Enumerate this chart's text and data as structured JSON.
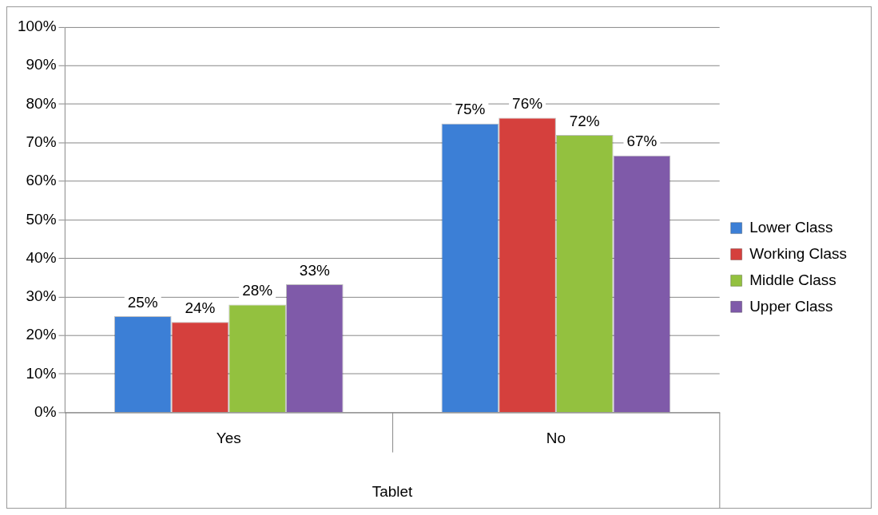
{
  "chart_data": {
    "type": "bar",
    "categories": [
      "Yes",
      "No"
    ],
    "xlabel": "Tablet",
    "series": [
      {
        "name": "Lower Class",
        "color": "#3c7fd6",
        "values": [
          25,
          75
        ],
        "value_labels": [
          "25%",
          "75%"
        ]
      },
      {
        "name": "Working Class",
        "color": "#d5403d",
        "values": [
          23.5,
          76.5
        ],
        "value_labels": [
          "24%",
          "76%"
        ]
      },
      {
        "name": "Middle Class",
        "color": "#93c13f",
        "values": [
          28,
          72
        ],
        "value_labels": [
          "28%",
          "72%"
        ]
      },
      {
        "name": "Upper Class",
        "color": "#7f5aa9",
        "values": [
          33.3,
          66.7
        ],
        "value_labels": [
          "33%",
          "67%"
        ]
      }
    ],
    "ylim": [
      0,
      100
    ],
    "yticks": [
      {
        "value": 0,
        "label": "0%"
      },
      {
        "value": 10,
        "label": "10%"
      },
      {
        "value": 20,
        "label": "20%"
      },
      {
        "value": 30,
        "label": "30%"
      },
      {
        "value": 40,
        "label": "40%"
      },
      {
        "value": 50,
        "label": "50%"
      },
      {
        "value": 60,
        "label": "60%"
      },
      {
        "value": 70,
        "label": "70%"
      },
      {
        "value": 80,
        "label": "80%"
      },
      {
        "value": 90,
        "label": "90%"
      },
      {
        "value": 100,
        "label": "100%"
      }
    ],
    "grid": "y",
    "legend": "right"
  }
}
